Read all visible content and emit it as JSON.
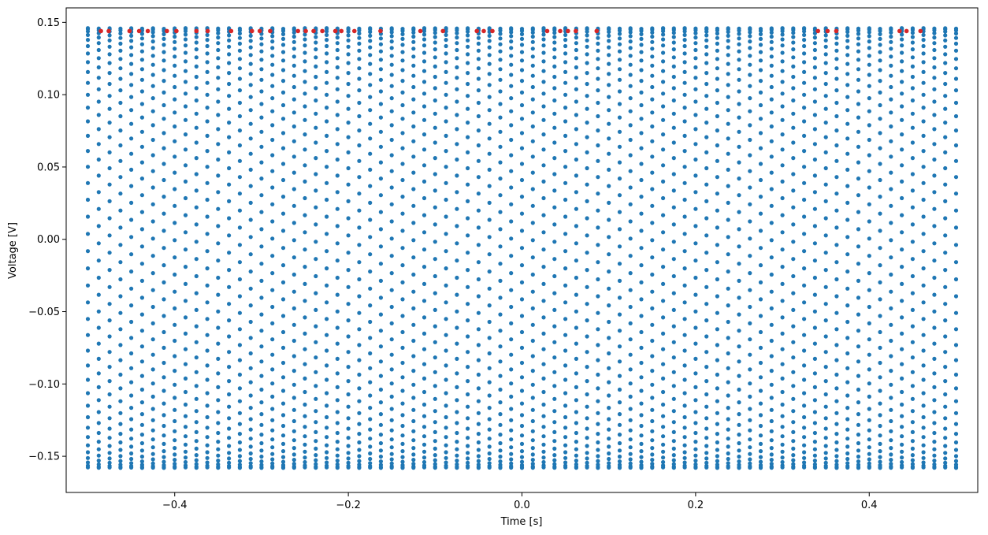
{
  "chart_data": {
    "type": "scatter",
    "title": "",
    "xlabel": "Time [s]",
    "ylabel": "Voltage [V]",
    "xlim": [
      -0.525,
      0.525
    ],
    "ylim": [
      -0.175,
      0.16
    ],
    "x_ticks": [
      -0.4,
      -0.2,
      0.0,
      0.2,
      0.4
    ],
    "x_tick_labels": [
      "−0.4",
      "−0.2",
      "0.0",
      "0.2",
      "0.4"
    ],
    "y_ticks": [
      -0.15,
      -0.1,
      -0.05,
      0.0,
      0.05,
      0.1,
      0.15
    ],
    "y_tick_labels": [
      "−0.15",
      "−0.10",
      "−0.05",
      "0.00",
      "0.05",
      "0.10",
      "0.15"
    ],
    "grid": false,
    "legend": "none",
    "series": [
      {
        "marker_color": "#1f77b4",
        "description_hidden": true,
        "sampling": {
          "x_start": -0.5,
          "x_end": 0.5,
          "step": 0.0125,
          "y_min": -0.158,
          "y_max": 0.146,
          "ramp_period": 0.011
        }
      },
      {
        "marker_color": "#d62728",
        "y_level": 0.144,
        "x": [
          -0.485,
          -0.476,
          -0.452,
          -0.441,
          -0.431,
          -0.409,
          -0.398,
          -0.375,
          -0.362,
          -0.335,
          -0.311,
          -0.302,
          -0.29,
          -0.258,
          -0.249,
          -0.24,
          -0.23,
          -0.215,
          -0.208,
          -0.193,
          -0.163,
          -0.117,
          -0.091,
          -0.052,
          -0.044,
          -0.034,
          0.029,
          0.044,
          0.053,
          0.062,
          0.086,
          0.341,
          0.352,
          0.362,
          0.435,
          0.443,
          0.459
        ]
      }
    ]
  }
}
